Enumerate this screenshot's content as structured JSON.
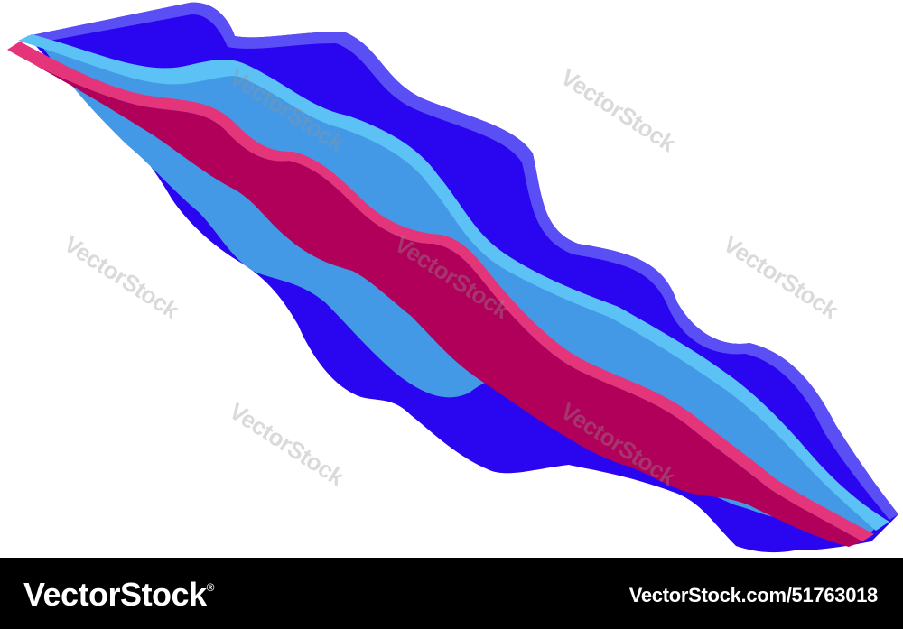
{
  "image": {
    "subject": "isometric wavy layered strata",
    "colors": {
      "background": "#ffffff",
      "deep_blue": "#2a06f0",
      "deep_blue_edge": "#5a4ff5",
      "mid_blue": "#4499e6",
      "light_blue_edge": "#5cc1f5",
      "magenta": "#b0005a",
      "magenta_edge": "#e5357a",
      "footer": "#000000"
    }
  },
  "watermark": {
    "text": "VectorStock"
  },
  "footer": {
    "brand": "VectorStock",
    "registered_mark": "®",
    "image_id": "VectorStock.com/51763018"
  }
}
